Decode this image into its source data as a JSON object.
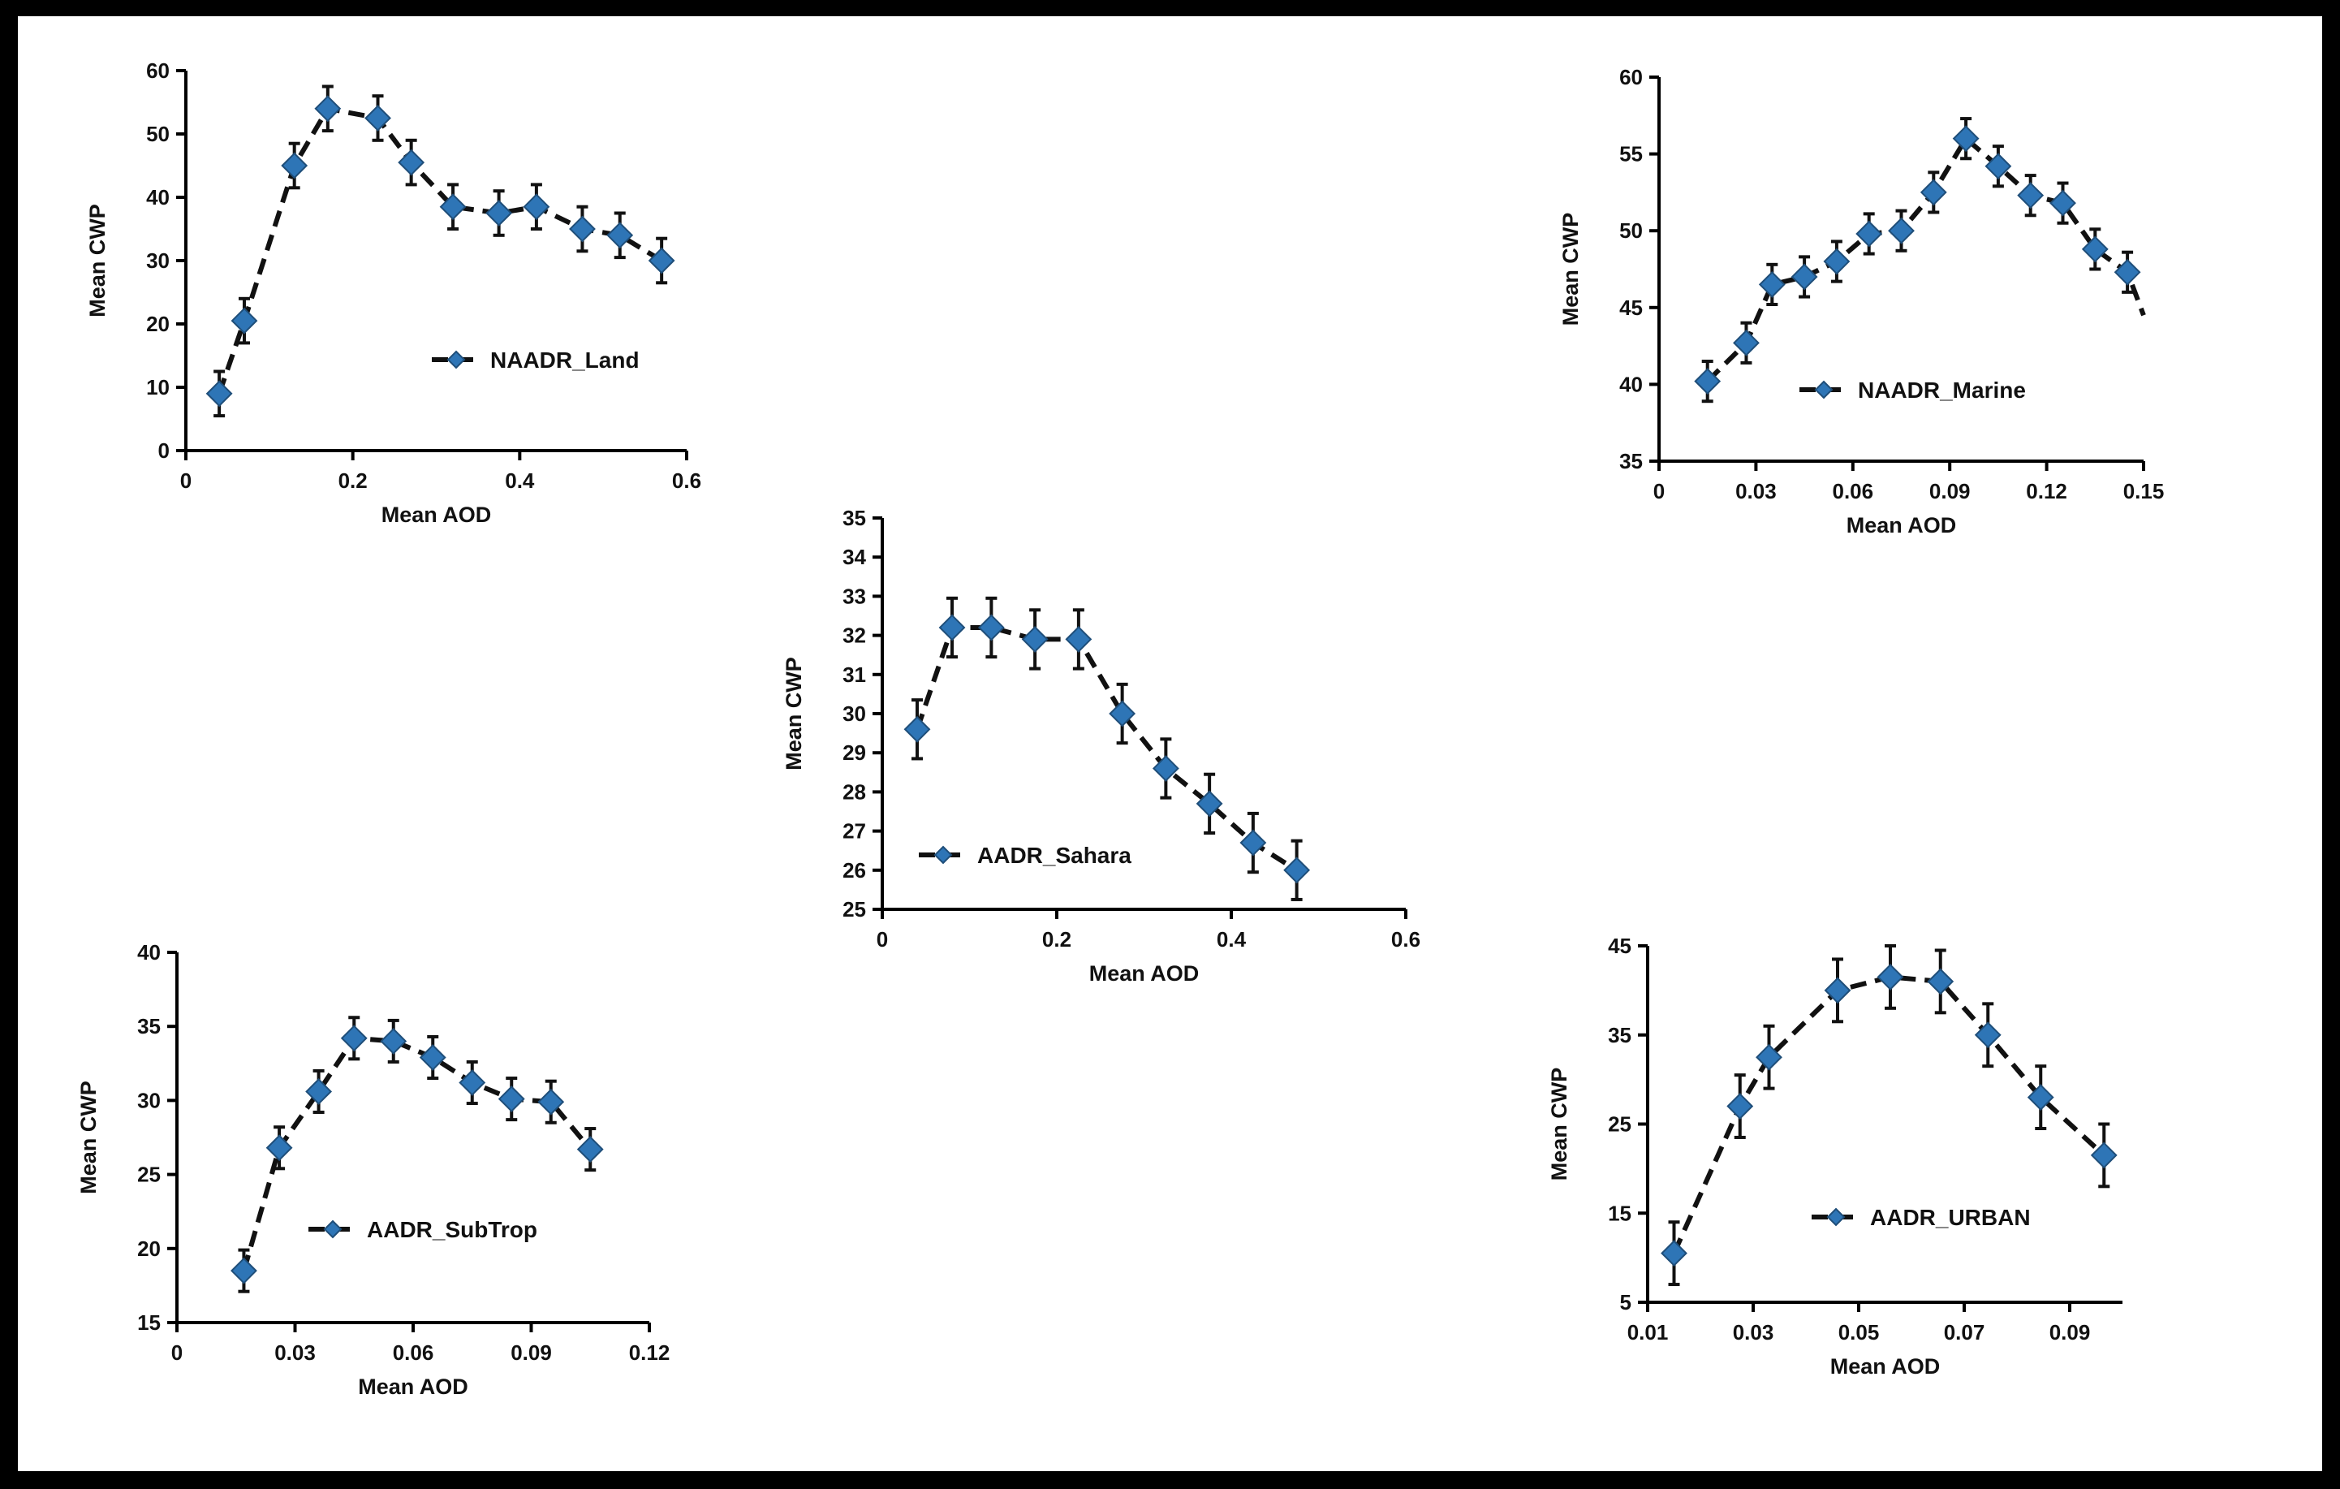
{
  "chart_data": [
    {
      "type": "line",
      "xlabel": "Mean AOD",
      "ylabel": "Mean CWP",
      "xlim": [
        0,
        0.6
      ],
      "ylim": [
        0,
        60
      ],
      "xticks": [
        0,
        0.2,
        0.4,
        0.6
      ],
      "xtick_labels": [
        "0",
        "0.2",
        "0.4",
        "0.6"
      ],
      "yticks": [
        0,
        10,
        20,
        30,
        40,
        50,
        60
      ],
      "ytick_labels": [
        "0",
        "10",
        "20",
        "30",
        "40",
        "50",
        "60"
      ],
      "legend_position": "center-right",
      "series": [
        {
          "name": "NAADR_Land",
          "marker": "diamond",
          "line_style": "dashed",
          "x": [
            0.04,
            0.07,
            0.13,
            0.17,
            0.23,
            0.27,
            0.32,
            0.375,
            0.42,
            0.475,
            0.52,
            0.57
          ],
          "y": [
            9,
            20.5,
            45,
            54,
            52.5,
            45.5,
            38.5,
            37.5,
            38.5,
            35,
            34,
            30
          ],
          "err": [
            3.5,
            3.5,
            3.5,
            3.5,
            3.5,
            3.5,
            3.5,
            3.5,
            3.5,
            3.5,
            3.5,
            3.5
          ]
        }
      ]
    },
    {
      "type": "line",
      "xlabel": "Mean AOD",
      "ylabel": "Mean CWP",
      "xlim": [
        0,
        0.15
      ],
      "ylim": [
        35,
        60
      ],
      "xticks": [
        0,
        0.03,
        0.06,
        0.09,
        0.12,
        0.15
      ],
      "xtick_labels": [
        "0",
        "0.03",
        "0.06",
        "0.09",
        "0.12",
        "0.15"
      ],
      "yticks": [
        35,
        40,
        45,
        50,
        55,
        60
      ],
      "ytick_labels": [
        "35",
        "40",
        "45",
        "50",
        "55",
        "60"
      ],
      "legend_position": "lower-center",
      "series": [
        {
          "name": "NAADR_Marine",
          "marker": "diamond",
          "line_style": "dashed",
          "x": [
            0.015,
            0.027,
            0.035,
            0.045,
            0.055,
            0.065,
            0.075,
            0.085,
            0.095,
            0.105,
            0.115,
            0.125,
            0.135,
            0.145
          ],
          "y": [
            40.2,
            42.7,
            46.5,
            47,
            48,
            49.8,
            50,
            52.5,
            56,
            54.2,
            52.3,
            51.8,
            48.8,
            47.3
          ],
          "err": [
            1.3,
            1.3,
            1.3,
            1.3,
            1.3,
            1.3,
            1.3,
            1.3,
            1.3,
            1.3,
            1.3,
            1.3,
            1.3,
            1.3
          ],
          "line_tail": [
            0.15,
            44.5
          ]
        }
      ]
    },
    {
      "type": "line",
      "xlabel": "Mean AOD",
      "ylabel": "Mean CWP",
      "xlim": [
        0,
        0.6
      ],
      "ylim": [
        25,
        35
      ],
      "xticks": [
        0,
        0.2,
        0.4,
        0.6
      ],
      "xtick_labels": [
        "0",
        "0.2",
        "0.4",
        "0.6"
      ],
      "yticks": [
        25,
        26,
        27,
        28,
        29,
        30,
        31,
        32,
        33,
        34,
        35
      ],
      "ytick_labels": [
        "25",
        "26",
        "27",
        "28",
        "29",
        "30",
        "31",
        "32",
        "33",
        "34",
        "35"
      ],
      "legend_position": "lower-left",
      "series": [
        {
          "name": "AADR_Sahara",
          "marker": "diamond",
          "line_style": "dashed",
          "x": [
            0.04,
            0.08,
            0.125,
            0.175,
            0.225,
            0.275,
            0.325,
            0.375,
            0.425,
            0.475
          ],
          "y": [
            29.6,
            32.2,
            32.2,
            31.9,
            31.9,
            30,
            28.6,
            27.7,
            26.7,
            26
          ],
          "err": [
            0.75,
            0.75,
            0.75,
            0.75,
            0.75,
            0.75,
            0.75,
            0.75,
            0.75,
            0.75
          ]
        }
      ]
    },
    {
      "type": "line",
      "xlabel": "Mean AOD",
      "ylabel": "Mean CWP",
      "xlim": [
        0,
        0.12
      ],
      "ylim": [
        15,
        40
      ],
      "xticks": [
        0,
        0.03,
        0.06,
        0.09,
        0.12
      ],
      "xtick_labels": [
        "0",
        "0.03",
        "0.06",
        "0.09",
        "0.12"
      ],
      "yticks": [
        15,
        20,
        25,
        30,
        35,
        40
      ],
      "ytick_labels": [
        "15",
        "20",
        "25",
        "30",
        "35",
        "40"
      ],
      "legend_position": "lower-center",
      "series": [
        {
          "name": "AADR_SubTrop",
          "marker": "diamond",
          "line_style": "dashed",
          "x": [
            0.017,
            0.026,
            0.036,
            0.045,
            0.055,
            0.065,
            0.075,
            0.085,
            0.095,
            0.105
          ],
          "y": [
            18.5,
            26.8,
            30.6,
            34.2,
            34,
            32.9,
            31.2,
            30.1,
            29.9,
            26.7
          ],
          "err": [
            1.4,
            1.4,
            1.4,
            1.4,
            1.4,
            1.4,
            1.4,
            1.4,
            1.4,
            1.4
          ]
        }
      ]
    },
    {
      "type": "line",
      "xlabel": "Mean AOD",
      "ylabel": "Mean CWP",
      "xlim": [
        0.01,
        0.1
      ],
      "ylim": [
        5,
        45
      ],
      "xticks": [
        0.01,
        0.03,
        0.05,
        0.07,
        0.09
      ],
      "xtick_labels": [
        "0.01",
        "0.03",
        "0.05",
        "0.07",
        "0.09"
      ],
      "yticks": [
        5,
        15,
        25,
        35,
        45
      ],
      "ytick_labels": [
        "5",
        "15",
        "25",
        "35",
        "45"
      ],
      "legend_position": "lower-right",
      "series": [
        {
          "name": "AADR_URBAN",
          "marker": "diamond",
          "line_style": "dashed",
          "x": [
            0.015,
            0.0275,
            0.033,
            0.046,
            0.056,
            0.0655,
            0.0745,
            0.0845,
            0.0965
          ],
          "y": [
            10.5,
            27,
            32.5,
            40,
            41.5,
            41,
            35,
            28,
            21.5
          ],
          "err": [
            3.5,
            3.5,
            3.5,
            3.5,
            3.5,
            3.5,
            3.5,
            3.5,
            3.5
          ]
        }
      ]
    }
  ],
  "colors": {
    "marker_fill": "#2e75b6",
    "marker_edge": "#1f4e79",
    "line": "#111111",
    "error_bar": "#111111",
    "frame": "#000000",
    "background": "#ffffff"
  }
}
